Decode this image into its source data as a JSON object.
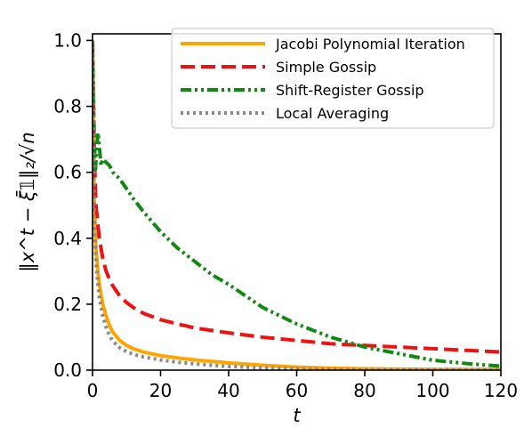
{
  "chart_data": {
    "type": "line",
    "xlabel": "t",
    "ylabel": "‖x^t − ξ̄𝟙‖₂/√n",
    "xlim": [
      0,
      120
    ],
    "ylim": [
      0,
      1.02
    ],
    "x_ticks": [
      0,
      20,
      40,
      60,
      80,
      100,
      120
    ],
    "x_tick_labels": [
      "0",
      "20",
      "40",
      "60",
      "80",
      "100",
      "120"
    ],
    "y_ticks": [
      0.0,
      0.2,
      0.4,
      0.6,
      0.8,
      1.0
    ],
    "y_tick_labels": [
      "0.0",
      "0.2",
      "0.4",
      "0.6",
      "0.8",
      "1.0"
    ],
    "grid": false,
    "legend_position": "top-right",
    "series": [
      {
        "name": "Jacobi Polynomial Iteration",
        "color": "#FFA500",
        "dash": "solid",
        "x": [
          0,
          0.5,
          1,
          1.5,
          2,
          3,
          4,
          5,
          6,
          8,
          10,
          12,
          15,
          20,
          25,
          30,
          40,
          50,
          60,
          70,
          80,
          90,
          100,
          110,
          120
        ],
        "y": [
          1.0,
          0.52,
          0.37,
          0.31,
          0.26,
          0.2,
          0.165,
          0.135,
          0.115,
          0.09,
          0.075,
          0.065,
          0.055,
          0.044,
          0.037,
          0.031,
          0.022,
          0.015,
          0.009,
          0.006,
          0.004,
          0.003,
          0.0025,
          0.002,
          0.002
        ]
      },
      {
        "name": "Simple Gossip",
        "color": "#EE1111",
        "dash": "dashed",
        "x": [
          0,
          0.5,
          1,
          2,
          3,
          4,
          5,
          6,
          8,
          10,
          12,
          15,
          20,
          25,
          30,
          40,
          50,
          60,
          70,
          80,
          90,
          100,
          110,
          120
        ],
        "y": [
          1.0,
          0.66,
          0.5,
          0.4,
          0.34,
          0.3,
          0.275,
          0.255,
          0.225,
          0.205,
          0.19,
          0.172,
          0.153,
          0.14,
          0.128,
          0.113,
          0.1,
          0.09,
          0.08,
          0.075,
          0.07,
          0.065,
          0.06,
          0.055
        ]
      },
      {
        "name": "Shift-Register Gossip",
        "color": "#118811",
        "dash": "dashdot",
        "x": [
          0,
          0.4,
          0.8,
          1.2,
          1.6,
          2,
          2.5,
          3,
          4,
          5,
          6,
          8,
          10,
          12,
          15,
          20,
          25,
          30,
          35,
          40,
          50,
          60,
          70,
          80,
          90,
          100,
          110,
          120
        ],
        "y": [
          1.0,
          0.76,
          0.6,
          0.67,
          0.72,
          0.68,
          0.62,
          0.64,
          0.63,
          0.62,
          0.6,
          0.58,
          0.55,
          0.52,
          0.48,
          0.42,
          0.37,
          0.33,
          0.29,
          0.26,
          0.19,
          0.14,
          0.1,
          0.07,
          0.05,
          0.03,
          0.02,
          0.012
        ]
      },
      {
        "name": "Local Averaging",
        "color": "#888888",
        "dash": "dotted",
        "x": [
          0,
          0.5,
          1,
          1.5,
          2,
          3,
          4,
          5,
          6,
          8,
          10,
          12,
          15,
          20,
          25,
          30,
          40,
          50,
          60,
          70,
          80,
          90,
          100,
          110,
          120
        ],
        "y": [
          1.0,
          0.48,
          0.33,
          0.27,
          0.22,
          0.165,
          0.13,
          0.105,
          0.088,
          0.068,
          0.056,
          0.048,
          0.04,
          0.031,
          0.024,
          0.019,
          0.011,
          0.007,
          0.004,
          0.003,
          0.002,
          0.0015,
          0.001,
          0.001,
          0.001
        ]
      }
    ]
  }
}
